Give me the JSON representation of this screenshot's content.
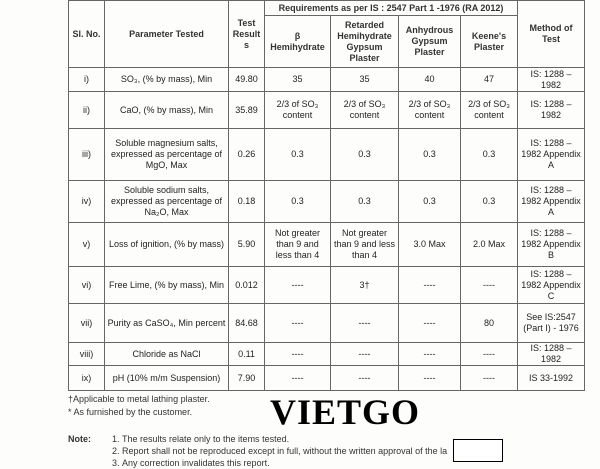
{
  "header": {
    "sl": "Sl. No.",
    "param": "Parameter Tested",
    "result": "Test Results",
    "req": "Requirements as per IS : 2547 Part 1 -1976 (RA 2012)",
    "cols": [
      "β Hemihydrate",
      "Retarded Hemihydrate Gypsum Plaster",
      "Anhydrous Gypsum Plaster",
      "Keene's Plaster"
    ],
    "method": "Method of Test"
  },
  "rows": [
    {
      "sl": "i)",
      "param": "SO₃, (% by mass), Min",
      "result": "49.80",
      "v": [
        "35",
        "35",
        "40",
        "47"
      ],
      "method": "IS: 1288 – 1982"
    },
    {
      "sl": "ii)",
      "param": "CaO, (% by mass), Min",
      "result": "35.89",
      "v": [
        "2/3 of SO₃ content",
        "2/3 of SO₃ content",
        "2/3 of SO₃ content",
        "2/3 of SO₃ content"
      ],
      "method": "IS: 1288 – 1982"
    },
    {
      "sl": "iii)",
      "param": "Soluble magnesium salts, expressed as percentage of MgO, Max",
      "result": "0.26",
      "v": [
        "0.3",
        "0.3",
        "0.3",
        "0.3"
      ],
      "method": "IS: 1288 – 1982 Appendix A"
    },
    {
      "sl": "iv)",
      "param": "Soluble sodium salts, expressed as percentage of Na₂O, Max",
      "result": "0.18",
      "v": [
        "0.3",
        "0.3",
        "0.3",
        "0.3"
      ],
      "method": "IS: 1288 – 1982 Appendix A"
    },
    {
      "sl": "v)",
      "param": "Loss of ignition, (% by mass)",
      "result": "5.90",
      "v": [
        "Not greater than 9 and less than 4",
        "Not greater than 9 and less than 4",
        "3.0 Max",
        "2.0 Max"
      ],
      "method": "IS: 1288 – 1982 Appendix B"
    },
    {
      "sl": "vi)",
      "param": "Free Lime, (% by mass), Min",
      "result": "0.012",
      "v": [
        "----",
        "3†",
        "----",
        "----"
      ],
      "method": "IS: 1288 – 1982 Appendix C"
    },
    {
      "sl": "vii)",
      "param": "Purity as CaSO₄, Min percent",
      "result": "84.68",
      "v": [
        "----",
        "----",
        "----",
        "80"
      ],
      "method": "See IS:2547 (Part I) - 1976"
    },
    {
      "sl": "viii)",
      "param": "Chloride as NaCl",
      "result": "0.11",
      "v": [
        "----",
        "----",
        "----",
        "----"
      ],
      "method": "IS: 1288 – 1982"
    },
    {
      "sl": "ix)",
      "param": "pH (10% m/m Suspension)",
      "result": "7.90",
      "v": [
        "----",
        "----",
        "----",
        "----"
      ],
      "method": "IS 33-1992"
    }
  ],
  "footnotes": [
    "†Applicable to metal lathing plaster.",
    "* As furnished by the customer."
  ],
  "note": {
    "label": "Note:",
    "items": [
      "The results relate only to the items tested.",
      "Report shall not be reproduced except in full, without the written approval of the la",
      "Any correction invalidates this report."
    ]
  },
  "watermark": "VIETGO"
}
